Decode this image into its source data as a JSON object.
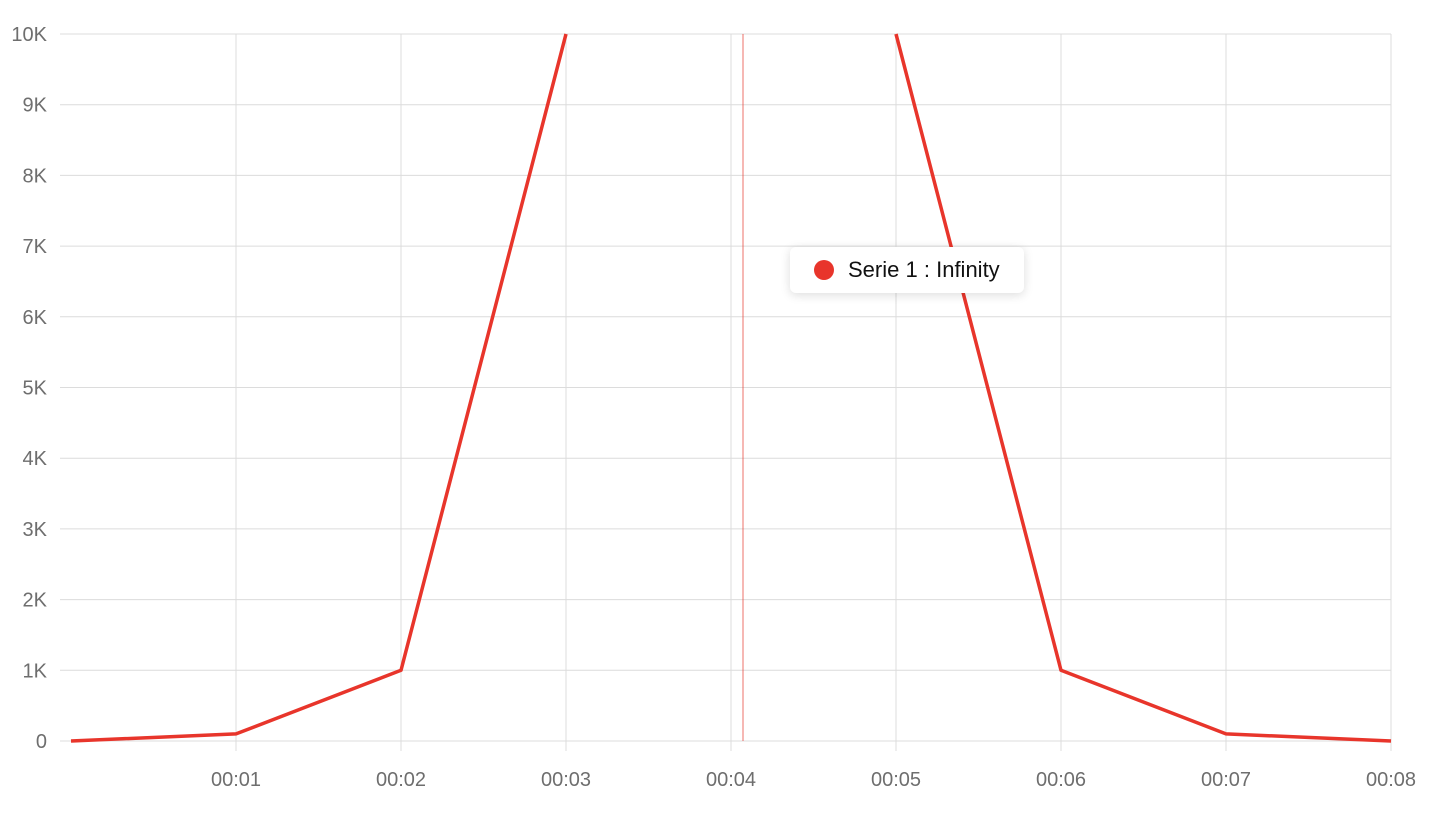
{
  "chart_data": {
    "type": "line",
    "title": "",
    "xlabel": "",
    "ylabel": "",
    "x_ticks": [
      "00:01",
      "00:02",
      "00:03",
      "00:04",
      "00:05",
      "00:06",
      "00:07",
      "00:08"
    ],
    "y_ticks": [
      "0",
      "1K",
      "2K",
      "3K",
      "4K",
      "5K",
      "6K",
      "7K",
      "8K",
      "9K",
      "10K"
    ],
    "ylim": [
      0,
      10000
    ],
    "xlim": [
      "00:00",
      "00:08"
    ],
    "grid": true,
    "series": [
      {
        "name": "Serie 1",
        "color": "#e8352b",
        "x": [
          "00:00",
          "00:01",
          "00:02",
          "00:03",
          "00:04",
          "00:05",
          "00:06",
          "00:07",
          "00:08"
        ],
        "values": [
          0,
          100,
          1000,
          10000,
          "Infinity",
          10000,
          1000,
          100,
          0
        ]
      }
    ],
    "crosshair_x": "00:04",
    "tooltip": {
      "series": "Serie 1",
      "separator": ":",
      "value": "Infinity",
      "color": "#e8352b"
    }
  },
  "colors": {
    "series": "#e8352b",
    "grid": "#dcdcdc",
    "tick_text": "#6e6e6e"
  }
}
